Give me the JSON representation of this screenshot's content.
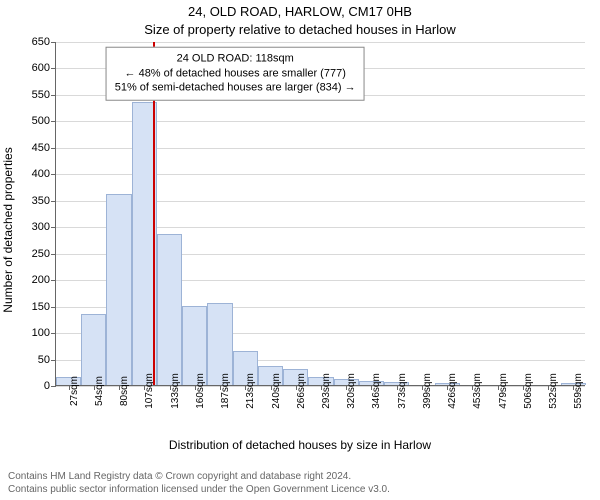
{
  "titles": {
    "line1": "24, OLD ROAD, HARLOW, CM17 0HB",
    "line2": "Size of property relative to detached houses in Harlow"
  },
  "ylabel": "Number of detached properties",
  "xlabel": "Distribution of detached houses by size in Harlow",
  "chart": {
    "type": "histogram",
    "ylim": [
      0,
      650
    ],
    "yticks": [
      0,
      50,
      100,
      150,
      200,
      250,
      300,
      350,
      400,
      450,
      500,
      550,
      600,
      650
    ],
    "xlim_index": [
      0,
      20
    ],
    "categories": [
      "27sqm",
      "54sqm",
      "80sqm",
      "107sqm",
      "133sqm",
      "160sqm",
      "187sqm",
      "213sqm",
      "240sqm",
      "266sqm",
      "293sqm",
      "320sqm",
      "346sqm",
      "373sqm",
      "399sqm",
      "426sqm",
      "453sqm",
      "479sqm",
      "506sqm",
      "532sqm",
      "559sqm"
    ],
    "values": [
      15,
      135,
      360,
      535,
      285,
      150,
      155,
      65,
      35,
      30,
      15,
      12,
      8,
      5,
      0,
      3,
      0,
      0,
      0,
      0,
      3
    ],
    "bar_color": "#d6e2f5",
    "bar_border_color": "#9db3d6",
    "bar_width_ratio": 1.0,
    "grid_color": "#999999",
    "background_color": "#ffffff",
    "reference_line": {
      "x_index": 3.4,
      "color": "#cc0000"
    },
    "annotation": {
      "lines": [
        "24 OLD ROAD: 118sqm",
        "← 48% of detached houses are smaller (777)",
        "51% of semi-detached houses are larger (834) →"
      ],
      "center_index": 6.6,
      "y_value": 590
    }
  },
  "footer": {
    "line1": "Contains HM Land Registry data © Crown copyright and database right 2024.",
    "line2": "Contains public sector information licensed under the Open Government Licence v3.0."
  }
}
